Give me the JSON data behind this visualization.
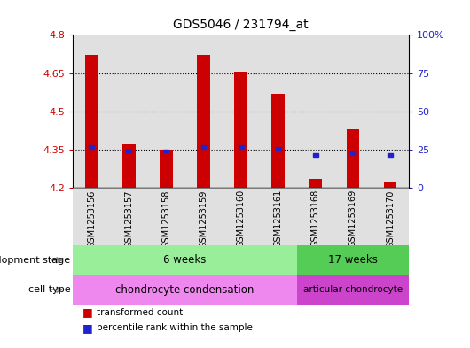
{
  "title": "GDS5046 / 231794_at",
  "samples": [
    "GSM1253156",
    "GSM1253157",
    "GSM1253158",
    "GSM1253159",
    "GSM1253160",
    "GSM1253161",
    "GSM1253168",
    "GSM1253169",
    "GSM1253170"
  ],
  "bar_values": [
    4.72,
    4.37,
    4.35,
    4.72,
    4.655,
    4.57,
    4.235,
    4.43,
    4.225
  ],
  "percentile_values": [
    4.36,
    4.345,
    4.345,
    4.36,
    4.36,
    4.355,
    4.33,
    4.335,
    4.33
  ],
  "bar_bottom": 4.2,
  "ylim_left": [
    4.2,
    4.8
  ],
  "ylim_right": [
    0,
    100
  ],
  "yticks_left": [
    4.2,
    4.35,
    4.5,
    4.65,
    4.8
  ],
  "yticks_right": [
    0,
    25,
    50,
    75,
    100
  ],
  "ytick_labels_left": [
    "4.2",
    "4.35",
    "4.5",
    "4.65",
    "4.8"
  ],
  "ytick_labels_right": [
    "0",
    "25",
    "50",
    "75",
    "100%"
  ],
  "hlines": [
    4.35,
    4.5,
    4.65
  ],
  "bar_color": "#cc0000",
  "percentile_color": "#2222cc",
  "dev_stage_6w_label": "6 weeks",
  "dev_stage_6w_color": "#99ee99",
  "dev_stage_17w_label": "17 weeks",
  "dev_stage_17w_color": "#55cc55",
  "cell_type_chondro_label": "chondrocyte condensation",
  "cell_type_chondro_color": "#ee88ee",
  "cell_type_articular_label": "articular chondrocyte",
  "cell_type_articular_color": "#cc44cc",
  "row_label_dev": "development stage",
  "row_label_cell": "cell type",
  "legend_bar_label": "transformed count",
  "legend_pct_label": "percentile rank within the sample",
  "background_color": "#ffffff",
  "tick_color_left": "#cc0000",
  "tick_color_right": "#2222cc",
  "sample_col_bg": "#cccccc"
}
